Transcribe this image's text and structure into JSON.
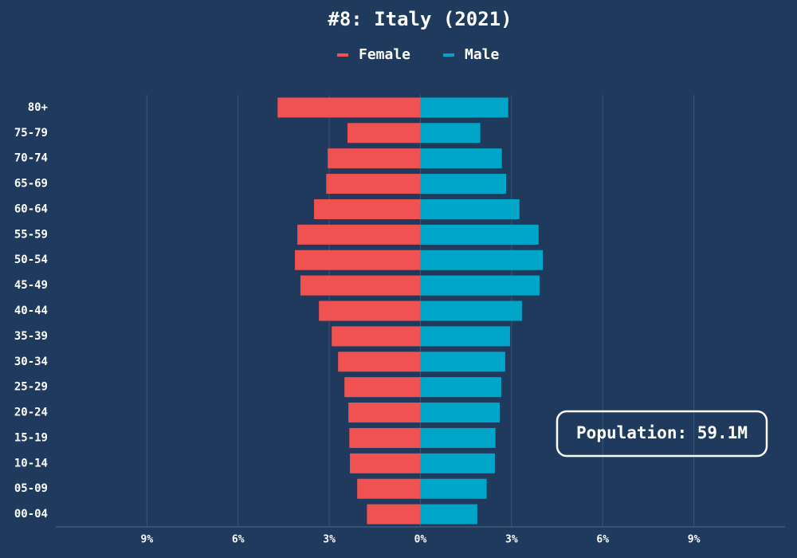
{
  "chart_data": {
    "type": "pyramid",
    "title": "#8: Italy (2021)",
    "categories": [
      "80+",
      "75-79",
      "70-74",
      "65-69",
      "60-64",
      "55-59",
      "50-54",
      "45-49",
      "40-44",
      "35-39",
      "30-34",
      "25-29",
      "20-24",
      "15-19",
      "10-14",
      "05-09",
      "00-04"
    ],
    "series": [
      {
        "name": "Female",
        "color": "#f05252",
        "values": [
          -4.7,
          -2.4,
          -3.05,
          -3.1,
          -3.5,
          -4.05,
          -4.13,
          -3.95,
          -3.34,
          -2.92,
          -2.71,
          -2.5,
          -2.37,
          -2.34,
          -2.32,
          -2.08,
          -1.76
        ]
      },
      {
        "name": "Male",
        "color": "#00a6c8",
        "values": [
          2.89,
          1.97,
          2.68,
          2.82,
          3.26,
          3.89,
          4.03,
          3.92,
          3.34,
          2.95,
          2.79,
          2.66,
          2.61,
          2.47,
          2.45,
          2.18,
          1.87
        ]
      }
    ],
    "xlim": [
      -12,
      12
    ],
    "xticks": [
      {
        "value": -9,
        "label": "9%"
      },
      {
        "value": -6,
        "label": "6%"
      },
      {
        "value": -3,
        "label": "3%"
      },
      {
        "value": 0,
        "label": "0%"
      },
      {
        "value": 3,
        "label": "3%"
      },
      {
        "value": 6,
        "label": "6%"
      },
      {
        "value": 9,
        "label": "9%"
      }
    ],
    "grid": true,
    "annotation": "Population: 59.1M"
  }
}
